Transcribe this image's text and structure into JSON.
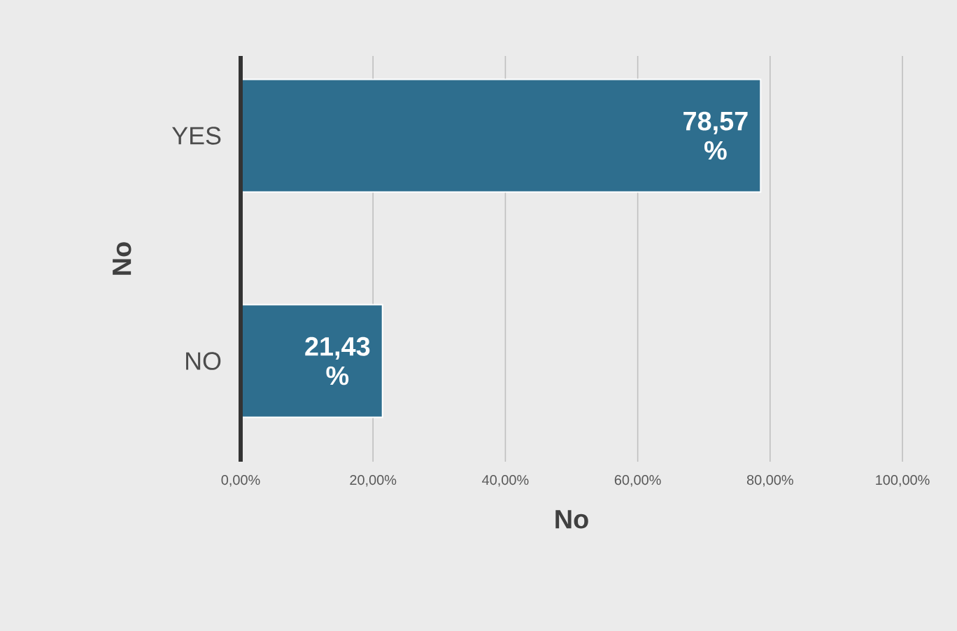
{
  "chart_data": {
    "type": "bar",
    "orientation": "horizontal",
    "categories": [
      "YES",
      "NO"
    ],
    "values": [
      78.57,
      21.43
    ],
    "value_labels": [
      "78,57 %",
      "21,43 %"
    ],
    "color": "#2e6e8e",
    "xlim": [
      0,
      100
    ],
    "xticks": [
      {
        "value": 0,
        "label": "0,00%"
      },
      {
        "value": 20,
        "label": "20,00%"
      },
      {
        "value": 40,
        "label": "40,00%"
      },
      {
        "value": 60,
        "label": "60,00%"
      },
      {
        "value": 80,
        "label": "80,00%"
      },
      {
        "value": 100,
        "label": "100,00%"
      }
    ],
    "grid": "x",
    "xlabel": "No",
    "ylabel": "No"
  }
}
